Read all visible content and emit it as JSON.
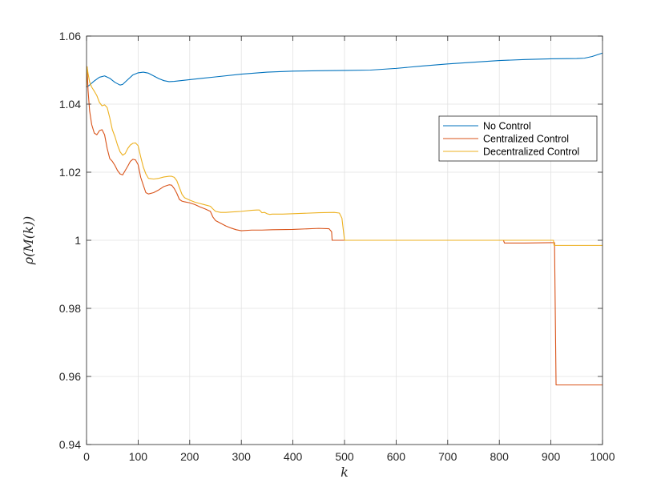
{
  "chart_data": {
    "type": "line",
    "title": "",
    "xlabel": "k",
    "ylabel": "ρ(M(k))",
    "xlim": [
      0,
      1000
    ],
    "ylim": [
      0.94,
      1.06
    ],
    "xticks": [
      0,
      100,
      200,
      300,
      400,
      500,
      600,
      700,
      800,
      900,
      1000
    ],
    "yticks": [
      0.94,
      0.96,
      0.98,
      1.0,
      1.02,
      1.04,
      1.06
    ],
    "xtick_labels": [
      "0",
      "100",
      "200",
      "300",
      "400",
      "500",
      "600",
      "700",
      "800",
      "900",
      "1000"
    ],
    "ytick_labels": [
      "0.94",
      "0.96",
      "0.98",
      "1",
      "1.02",
      "1.04",
      "1.06"
    ],
    "grid": true,
    "legend_position": "top-right",
    "series": [
      {
        "name": "No Control",
        "color": "#0072BD",
        "x": [
          0,
          5,
          15,
          25,
          35,
          45,
          55,
          65,
          70,
          80,
          90,
          100,
          110,
          120,
          130,
          140,
          150,
          160,
          170,
          200,
          250,
          300,
          350,
          400,
          450,
          500,
          550,
          600,
          650,
          700,
          750,
          800,
          850,
          900,
          950,
          965,
          980,
          1000
        ],
        "y": [
          1.045,
          1.0455,
          1.0468,
          1.0479,
          1.0483,
          1.0476,
          1.0464,
          1.0456,
          1.0458,
          1.0472,
          1.0486,
          1.0492,
          1.0494,
          1.0491,
          1.0483,
          1.0475,
          1.0469,
          1.0466,
          1.0467,
          1.0472,
          1.048,
          1.0488,
          1.0494,
          1.0497,
          1.0498,
          1.0499,
          1.05,
          1.0505,
          1.0512,
          1.0518,
          1.0523,
          1.0528,
          1.0531,
          1.0533,
          1.0534,
          1.0535,
          1.054,
          1.055
        ]
      },
      {
        "name": "Centralized Control",
        "color": "#D95319",
        "x": [
          0,
          1,
          3,
          6,
          10,
          15,
          20,
          25,
          30,
          35,
          40,
          45,
          50,
          55,
          60,
          65,
          70,
          75,
          80,
          85,
          90,
          95,
          100,
          105,
          110,
          115,
          120,
          130,
          140,
          150,
          160,
          165,
          170,
          175,
          180,
          185,
          190,
          200,
          210,
          220,
          230,
          240,
          245,
          250,
          260,
          270,
          280,
          290,
          300,
          320,
          330,
          340,
          360,
          400,
          450,
          470,
          475,
          476,
          500,
          600,
          700,
          800,
          808,
          810,
          850,
          900,
          905,
          907,
          910,
          950,
          1000
        ],
        "y": [
          1.045,
          1.051,
          1.044,
          1.038,
          1.034,
          1.0315,
          1.031,
          1.0322,
          1.0325,
          1.031,
          1.027,
          1.024,
          1.0232,
          1.022,
          1.0205,
          1.0195,
          1.0192,
          1.0205,
          1.0218,
          1.0232,
          1.0238,
          1.0236,
          1.0222,
          1.0185,
          1.0162,
          1.014,
          1.0136,
          1.014,
          1.0148,
          1.0158,
          1.0163,
          1.0162,
          1.0152,
          1.0138,
          1.012,
          1.0115,
          1.0113,
          1.011,
          1.0105,
          1.0098,
          1.0092,
          1.0085,
          1.0068,
          1.0058,
          1.005,
          1.0042,
          1.0036,
          1.0031,
          1.0028,
          1.003,
          1.003,
          1.003,
          1.0031,
          1.0032,
          1.0035,
          1.0034,
          1.0025,
          1.0,
          1.0,
          1.0,
          1.0,
          1.0,
          1.0,
          0.9992,
          0.9992,
          0.9993,
          0.9993,
          0.9993,
          0.9575,
          0.9575,
          0.9575
        ]
      },
      {
        "name": "Decentralized Control",
        "color": "#EDB120",
        "x": [
          0,
          1,
          3,
          6,
          10,
          15,
          20,
          25,
          30,
          35,
          40,
          45,
          50,
          55,
          60,
          65,
          70,
          75,
          80,
          85,
          90,
          95,
          100,
          105,
          110,
          115,
          120,
          130,
          140,
          150,
          160,
          165,
          170,
          175,
          180,
          185,
          190,
          200,
          210,
          220,
          230,
          240,
          245,
          250,
          260,
          270,
          280,
          290,
          300,
          320,
          330,
          335,
          340,
          345,
          350,
          355,
          360,
          380,
          400,
          450,
          480,
          490,
          495,
          500,
          600,
          700,
          800,
          900,
          905,
          906,
          950,
          1000
        ],
        "y": [
          1.045,
          1.051,
          1.049,
          1.0465,
          1.045,
          1.0438,
          1.0425,
          1.0405,
          1.0395,
          1.0398,
          1.039,
          1.036,
          1.0325,
          1.0305,
          1.028,
          1.026,
          1.025,
          1.0255,
          1.027,
          1.028,
          1.0285,
          1.0286,
          1.0278,
          1.0245,
          1.0215,
          1.0195,
          1.0182,
          1.018,
          1.0182,
          1.0186,
          1.0188,
          1.0188,
          1.0185,
          1.0175,
          1.0155,
          1.0135,
          1.0125,
          1.0118,
          1.0112,
          1.0108,
          1.0104,
          1.01,
          1.0092,
          1.0085,
          1.0082,
          1.0082,
          1.0083,
          1.0084,
          1.0085,
          1.0088,
          1.0089,
          1.0089,
          1.0081,
          1.0082,
          1.0078,
          1.0076,
          1.0077,
          1.0077,
          1.0078,
          1.0081,
          1.0082,
          1.008,
          1.0065,
          1.0,
          1.0,
          1.0,
          1.0,
          1.0,
          1.0,
          0.9985,
          0.9985,
          0.9985
        ]
      }
    ]
  }
}
